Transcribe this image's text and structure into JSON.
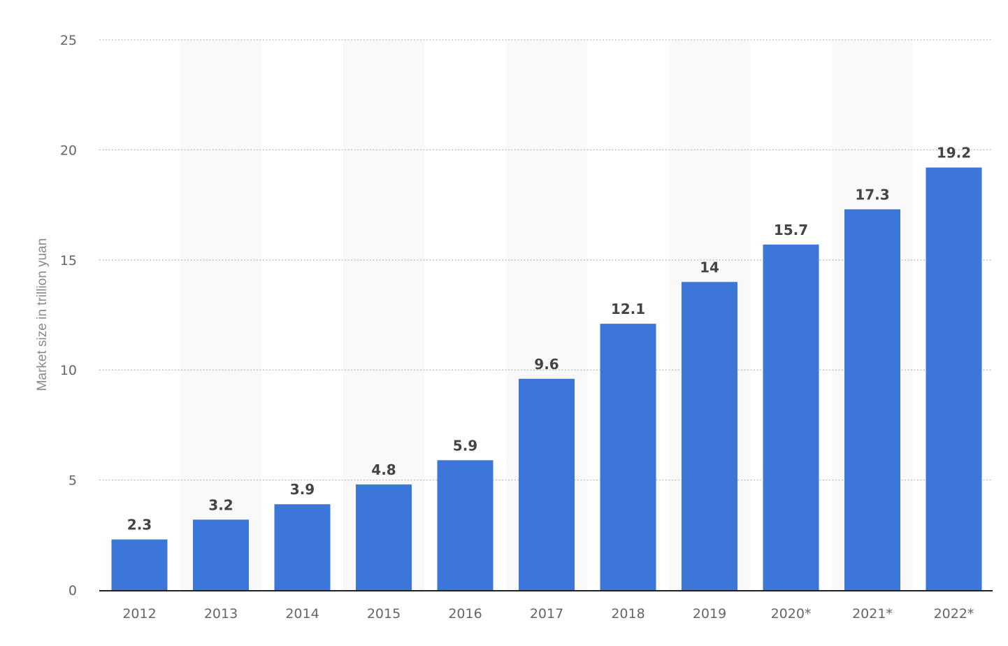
{
  "chart_data": {
    "type": "bar",
    "categories": [
      "2012",
      "2013",
      "2014",
      "2015",
      "2016",
      "2017",
      "2018",
      "2019",
      "2020*",
      "2021*",
      "2022*"
    ],
    "values": [
      2.3,
      3.2,
      3.9,
      4.8,
      5.9,
      9.6,
      12.1,
      14,
      15.7,
      17.3,
      19.2
    ],
    "value_labels": [
      "2.3",
      "3.2",
      "3.9",
      "4.8",
      "5.9",
      "9.6",
      "12.1",
      "14",
      "15.7",
      "17.3",
      "19.2"
    ],
    "title": "",
    "xlabel": "",
    "ylabel": "Market size in trillion yuan",
    "ylim": [
      0,
      25
    ],
    "yticks": [
      0,
      5,
      10,
      15,
      20,
      25
    ],
    "ytick_labels": [
      "0",
      "5",
      "10",
      "15",
      "20",
      "25"
    ],
    "grid": true,
    "legend": "none",
    "colors": {
      "bar": "#3b76d8",
      "band": "#f9f9f9",
      "grid": "#bdbdbd",
      "axis": "#222222",
      "tick_text": "#666666",
      "value_text": "#444444",
      "ylabel_text": "#8a8a8a"
    }
  }
}
